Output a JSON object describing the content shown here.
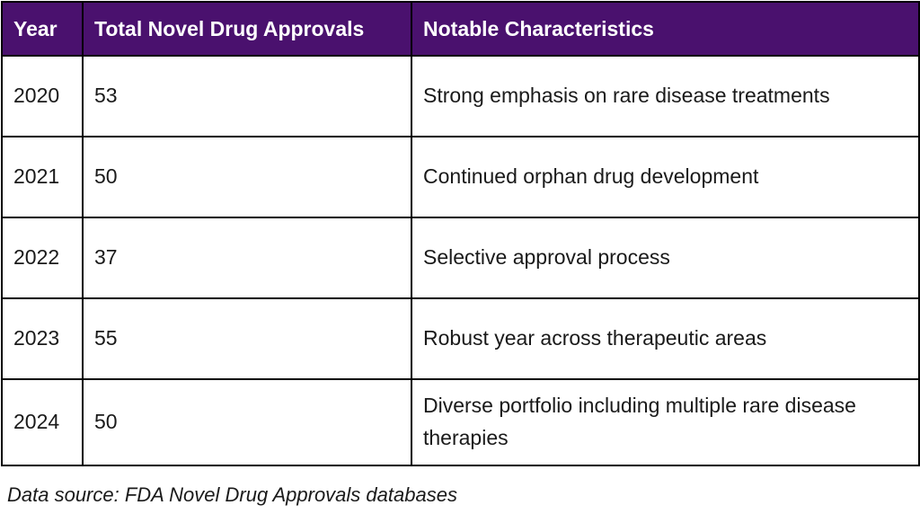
{
  "chart_data": {
    "type": "table",
    "columns": [
      "Year",
      "Total Novel Drug Approvals",
      "Notable Characteristics"
    ],
    "rows": [
      [
        "2020",
        "53",
        "Strong emphasis on rare disease treatments"
      ],
      [
        "2021",
        "50",
        "Continued orphan drug development"
      ],
      [
        "2022",
        "37",
        "Selective approval process"
      ],
      [
        "2023",
        "55",
        "Robust year across therapeutic areas"
      ],
      [
        "2024",
        "50",
        "Diverse portfolio including multiple rare disease therapies"
      ]
    ],
    "caption": "Data source: FDA Novel Drug Approvals databases",
    "layout": {
      "header_position": "top",
      "grid": "all-borders"
    }
  },
  "colors": {
    "header_bg": "#4a116e",
    "header_text": "#ffffff",
    "border": "#000000",
    "body_bg": "#ffffff",
    "body_text": "#1a1a1a"
  }
}
